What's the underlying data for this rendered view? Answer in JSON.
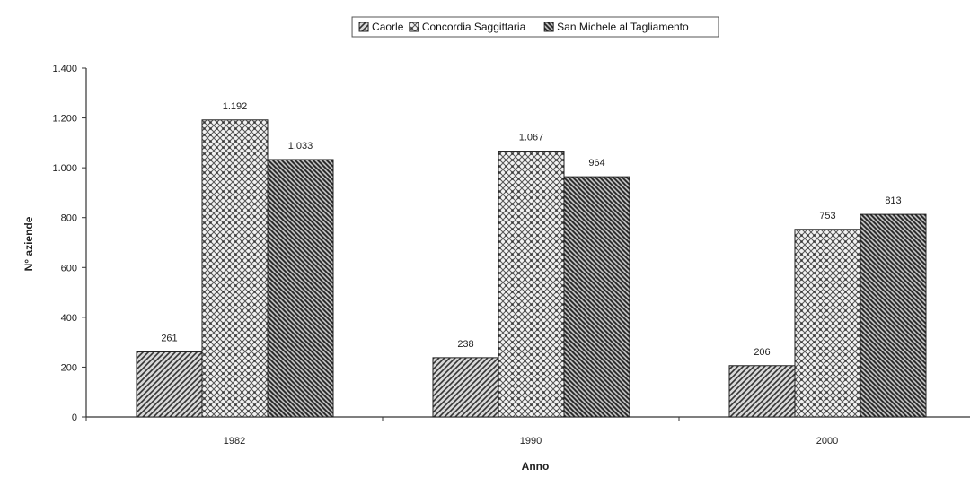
{
  "chart_data": {
    "type": "bar",
    "categories": [
      "1982",
      "1990",
      "2000"
    ],
    "series": [
      {
        "name": "Caorle",
        "values": [
          261,
          238,
          206
        ]
      },
      {
        "name": "Concordia Saggittaria",
        "values": [
          1192,
          1067,
          753
        ]
      },
      {
        "name": "San Michele al Tagliamento",
        "values": [
          1033,
          964,
          813
        ]
      }
    ],
    "data_labels": [
      [
        "261",
        "238",
        "206"
      ],
      [
        "1.192",
        "1.067",
        "753"
      ],
      [
        "1.033",
        "964",
        "813"
      ]
    ],
    "yticks": [
      0,
      200,
      400,
      600,
      800,
      1000,
      1200,
      1400
    ],
    "ytick_labels": [
      "0",
      "200",
      "400",
      "600",
      "800",
      "1.000",
      "1.200",
      "1.400"
    ],
    "ylim": [
      0,
      1400
    ],
    "xlabel": "Anno",
    "ylabel": "N° aziende",
    "legend_position": "top-center",
    "grid": false
  }
}
